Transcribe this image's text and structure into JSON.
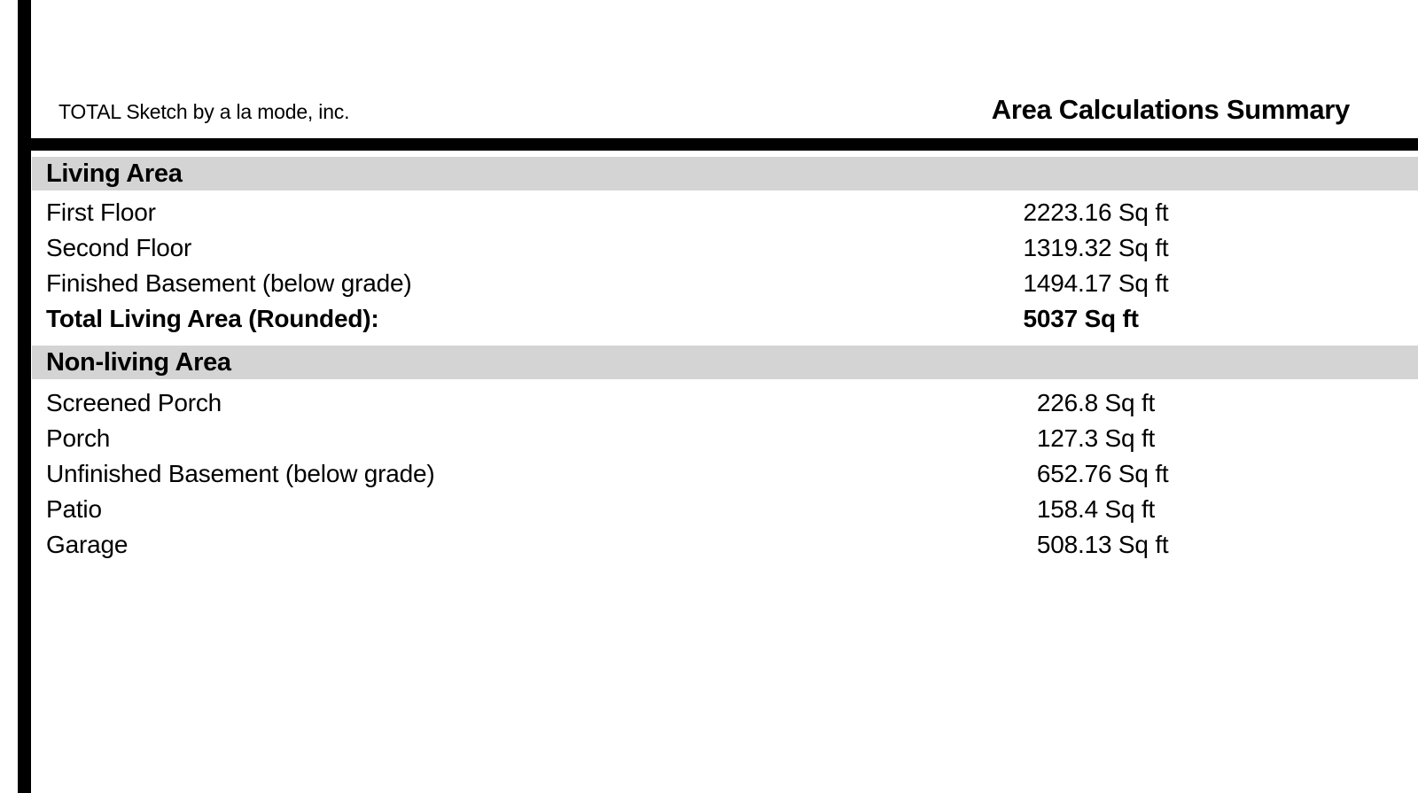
{
  "page": {
    "publisher": "TOTAL Sketch by a la mode, inc.",
    "title": "Area Calculations Summary"
  },
  "colors": {
    "section_banner_gray": "#d4d4d4",
    "rule_black": "#000000",
    "background": "#ffffff"
  },
  "sections": [
    {
      "header": "Living Area",
      "rows": [
        {
          "label": "First Floor",
          "value": "2223.16 Sq ft",
          "value_int": "2223",
          "value_rest": ".16 Sq ft"
        },
        {
          "label": "Second Floor",
          "value": "1319.32 Sq ft",
          "value_int": "1319",
          "value_rest": ".32 Sq ft"
        },
        {
          "label": "Finished Basement (below grade)",
          "value": "1494.17 Sq ft",
          "value_int": "1494",
          "value_rest": ".17 Sq ft"
        },
        {
          "label": "Total Living Area (Rounded):",
          "value": "5037 Sq ft",
          "value_int": "5037",
          "value_rest": " Sq ft"
        }
      ]
    },
    {
      "header": "Non-living Area",
      "rows": [
        {
          "label": "Screened Porch",
          "value": "226.8 Sq ft",
          "value_int": "226",
          "value_rest": ".8 Sq ft"
        },
        {
          "label": "Porch",
          "value": "127.3 Sq ft",
          "value_int": "127",
          "value_rest": ".3 Sq ft"
        },
        {
          "label": "Unfinished Basement (below grade)",
          "value": "652.76 Sq ft",
          "value_int": "652",
          "value_rest": ".76 Sq ft"
        },
        {
          "label": "Patio",
          "value": "158.4 Sq ft",
          "value_int": "158",
          "value_rest": ".4 Sq ft"
        },
        {
          "label": "Garage",
          "value": "508.13 Sq ft",
          "value_int": "508",
          "value_rest": ".13 Sq ft"
        }
      ]
    }
  ]
}
